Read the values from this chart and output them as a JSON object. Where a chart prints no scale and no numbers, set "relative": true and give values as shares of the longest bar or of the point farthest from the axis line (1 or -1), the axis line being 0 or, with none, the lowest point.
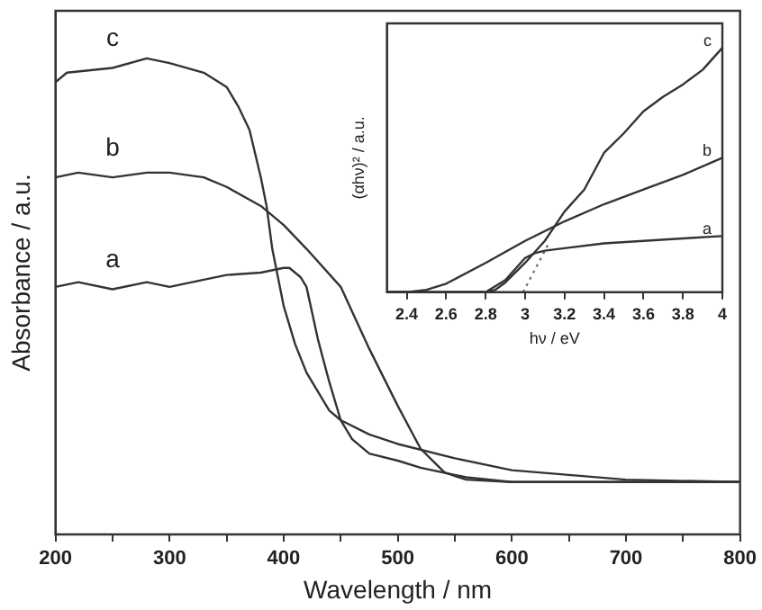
{
  "chart_data": [
    {
      "type": "line",
      "xlabel": "Wavelength / nm",
      "ylabel": "Absorbance / a.u.",
      "relative": true,
      "xlim": [
        200,
        800
      ],
      "xticks": [
        200,
        {
          "value": 250,
          "label": null
        },
        300,
        {
          "value": 350,
          "label": null
        },
        400,
        {
          "value": 450,
          "label": null
        },
        500,
        {
          "value": 550,
          "label": null
        },
        600,
        {
          "value": 650,
          "label": null
        },
        700,
        {
          "value": 750,
          "label": null
        },
        800
      ],
      "series": [
        {
          "name": "a",
          "color": "#333333",
          "x": [
            200,
            220,
            250,
            280,
            300,
            330,
            350,
            380,
            400,
            405,
            415,
            420,
            430,
            440,
            450,
            460,
            475,
            500,
            520,
            560,
            600,
            700,
            800
          ],
          "values": [
            0.52,
            0.53,
            0.515,
            0.53,
            0.52,
            0.535,
            0.545,
            0.55,
            0.56,
            0.56,
            0.54,
            0.52,
            0.41,
            0.32,
            0.24,
            0.2,
            0.17,
            0.155,
            0.14,
            0.12,
            0.11,
            0.11,
            0.11
          ]
        },
        {
          "name": "b",
          "color": "#333333",
          "x": [
            200,
            220,
            250,
            280,
            300,
            330,
            350,
            380,
            400,
            420,
            450,
            475,
            500,
            520,
            541,
            560,
            600,
            700,
            800
          ],
          "values": [
            0.75,
            0.76,
            0.75,
            0.76,
            0.76,
            0.75,
            0.73,
            0.69,
            0.65,
            0.6,
            0.52,
            0.39,
            0.27,
            0.18,
            0.13,
            0.115,
            0.11,
            0.11,
            0.11
          ]
        },
        {
          "name": "c",
          "color": "#333333",
          "x": [
            200,
            210,
            250,
            280,
            300,
            330,
            350,
            360,
            370,
            380,
            385,
            390,
            400,
            410,
            420,
            440,
            450,
            475,
            500,
            550,
            600,
            700,
            800
          ],
          "values": [
            0.95,
            0.97,
            0.98,
            1,
            0.99,
            0.97,
            0.94,
            0.9,
            0.85,
            0.75,
            0.69,
            0.6,
            0.48,
            0.4,
            0.34,
            0.26,
            0.24,
            0.21,
            0.19,
            0.16,
            0.135,
            0.115,
            0.11
          ]
        }
      ]
    },
    {
      "type": "line",
      "xlabel": "hν / eV",
      "ylabel": "(αhν)² / a.u.",
      "relative": true,
      "xlim": [
        2.3,
        4.0
      ],
      "xticks": [
        2.4,
        2.6,
        2.8,
        3.0,
        3.2,
        3.4,
        3.6,
        3.8,
        4.0
      ],
      "series": [
        {
          "name": "a",
          "color": "#333333",
          "x": [
            2.3,
            2.8,
            2.9,
            3.0,
            3.05,
            3.1,
            3.2,
            3.4,
            3.6,
            3.8,
            4.0
          ],
          "values": [
            0,
            0,
            0.05,
            0.14,
            0.16,
            0.17,
            0.18,
            0.2,
            0.21,
            0.22,
            0.23
          ]
        },
        {
          "name": "b",
          "color": "#333333",
          "x": [
            2.3,
            2.4,
            2.5,
            2.6,
            2.8,
            3.0,
            3.2,
            3.4,
            3.6,
            3.8,
            4.0
          ],
          "values": [
            0,
            0,
            0.01,
            0.035,
            0.12,
            0.21,
            0.29,
            0.36,
            0.42,
            0.48,
            0.55
          ]
        },
        {
          "name": "c",
          "color": "#333333",
          "x": [
            2.3,
            2.8,
            2.85,
            2.9,
            3.0,
            3.1,
            3.2,
            3.3,
            3.4,
            3.5,
            3.6,
            3.7,
            3.8,
            3.9,
            4.0
          ],
          "values": [
            0,
            0,
            0.01,
            0.04,
            0.12,
            0.21,
            0.33,
            0.42,
            0.57,
            0.65,
            0.74,
            0.8,
            0.85,
            0.91,
            1
          ]
        },
        {
          "type": "line",
          "line_style": "dotted",
          "color": "#777777",
          "x": [
            2.99,
            3.12
          ],
          "values": [
            0,
            0.2
          ]
        }
      ]
    }
  ]
}
